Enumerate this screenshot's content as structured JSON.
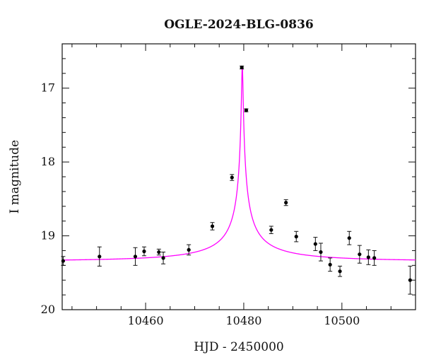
{
  "chart_data": {
    "type": "scatter",
    "title": "OGLE-2024-BLG-0836",
    "xlabel": "HJD - 2450000",
    "ylabel": "I magnitude",
    "xlim": [
      10443,
      10515
    ],
    "ylim": [
      20,
      16.4
    ],
    "y_inverted": true,
    "x_ticks": [
      10460,
      10480,
      10500
    ],
    "y_ticks": [
      17,
      18,
      19,
      20
    ],
    "grid": false,
    "series": [
      {
        "kind": "points_with_errorbars",
        "color": "#000000",
        "points": [
          {
            "x": 10443.2,
            "y": 19.34,
            "err": 0.06
          },
          {
            "x": 10450.6,
            "y": 19.28,
            "err": 0.13
          },
          {
            "x": 10457.9,
            "y": 19.28,
            "err": 0.12
          },
          {
            "x": 10459.7,
            "y": 19.21,
            "err": 0.06
          },
          {
            "x": 10462.7,
            "y": 19.22,
            "err": 0.04
          },
          {
            "x": 10463.6,
            "y": 19.3,
            "err": 0.08
          },
          {
            "x": 10468.8,
            "y": 19.19,
            "err": 0.07
          },
          {
            "x": 10473.6,
            "y": 18.87,
            "err": 0.05
          },
          {
            "x": 10477.6,
            "y": 18.21,
            "err": 0.04
          },
          {
            "x": 10479.6,
            "y": 16.72,
            "err": 0.02
          },
          {
            "x": 10480.5,
            "y": 17.3,
            "err": 0.02
          },
          {
            "x": 10485.6,
            "y": 18.92,
            "err": 0.05
          },
          {
            "x": 10488.6,
            "y": 18.55,
            "err": 0.04
          },
          {
            "x": 10490.7,
            "y": 19.01,
            "err": 0.07
          },
          {
            "x": 10494.6,
            "y": 19.11,
            "err": 0.09
          },
          {
            "x": 10495.7,
            "y": 19.22,
            "err": 0.12
          },
          {
            "x": 10497.6,
            "y": 19.39,
            "err": 0.09
          },
          {
            "x": 10499.6,
            "y": 19.48,
            "err": 0.07
          },
          {
            "x": 10501.5,
            "y": 19.03,
            "err": 0.09
          },
          {
            "x": 10503.6,
            "y": 19.25,
            "err": 0.12
          },
          {
            "x": 10505.4,
            "y": 19.29,
            "err": 0.1
          },
          {
            "x": 10506.6,
            "y": 19.3,
            "err": 0.1
          },
          {
            "x": 10513.9,
            "y": 19.6,
            "err": 0.19
          }
        ]
      },
      {
        "kind": "model_curve",
        "color": "#ff00ff",
        "t0": 10479.7,
        "tE": 30,
        "u0": 0.005,
        "baseline_mag": 19.34,
        "flux_ratio_source": 0.052
      }
    ]
  }
}
